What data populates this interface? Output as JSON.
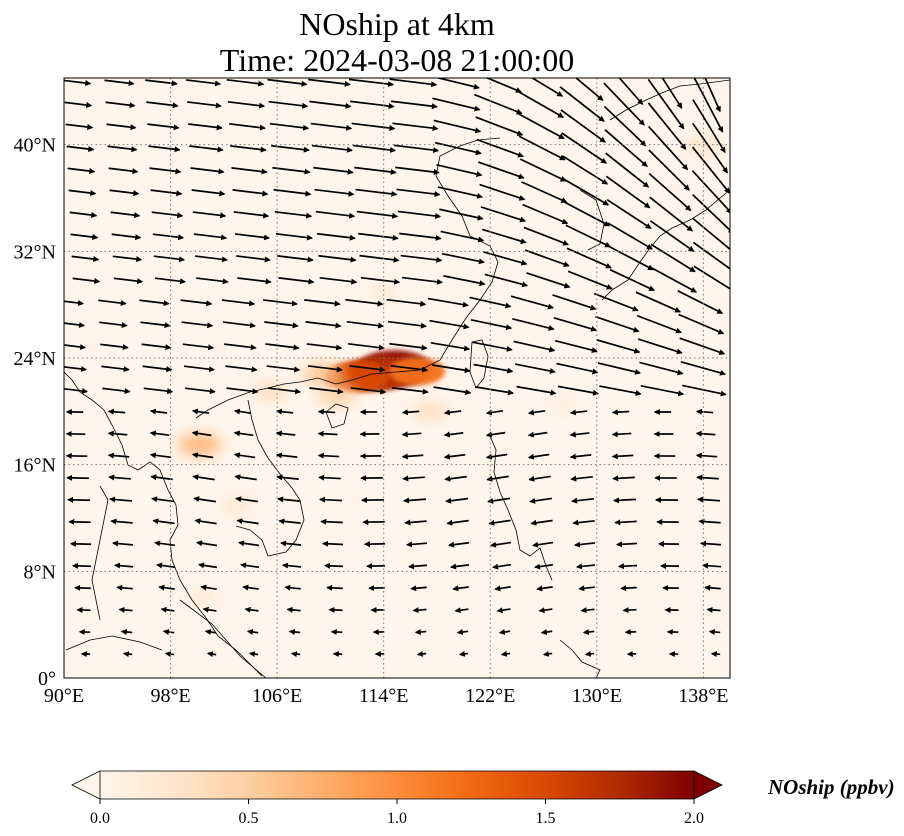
{
  "title": {
    "line1": "NOship at 4km",
    "line2": "Time: 2024-03-08 21:00:00"
  },
  "map": {
    "lon_range": [
      90,
      140
    ],
    "lat_range": [
      0,
      45
    ],
    "lon_ticks": [
      {
        "value": 90,
        "label": "90°E"
      },
      {
        "value": 98,
        "label": "98°E"
      },
      {
        "value": 106,
        "label": "106°E"
      },
      {
        "value": 114,
        "label": "114°E"
      },
      {
        "value": 122,
        "label": "122°E"
      },
      {
        "value": 130,
        "label": "130°E"
      },
      {
        "value": 138,
        "label": "138°E"
      }
    ],
    "lat_ticks": [
      {
        "value": 0,
        "label": "0°"
      },
      {
        "value": 8,
        "label": "8°N"
      },
      {
        "value": 16,
        "label": "16°N"
      },
      {
        "value": 24,
        "label": "24°N"
      },
      {
        "value": 32,
        "label": "32°N"
      },
      {
        "value": 40,
        "label": "40°N"
      }
    ],
    "gridlines": "dotted",
    "field_name": "NOship",
    "hotspots": [
      {
        "lon": 114.8,
        "lat": 23.2,
        "value": 1.9
      },
      {
        "lon": 113.5,
        "lat": 22.8,
        "value": 1.7
      },
      {
        "lon": 112.0,
        "lat": 22.6,
        "value": 1.5
      },
      {
        "lon": 116.5,
        "lat": 23.0,
        "value": 1.2
      },
      {
        "lon": 109.5,
        "lat": 22.8,
        "value": 0.6
      },
      {
        "lon": 110.5,
        "lat": 21.2,
        "value": 0.5
      },
      {
        "lon": 100.2,
        "lat": 17.5,
        "value": 0.7
      },
      {
        "lon": 117.5,
        "lat": 20.0,
        "value": 0.35
      },
      {
        "lon": 114.0,
        "lat": 29.0,
        "value": 0.2
      },
      {
        "lon": 105.5,
        "lat": 21.5,
        "value": 0.35
      },
      {
        "lon": 103.0,
        "lat": 13.0,
        "value": 0.25
      },
      {
        "lon": 100.5,
        "lat": 6.0,
        "value": 0.2
      },
      {
        "lon": 138.0,
        "lat": 40.0,
        "value": 0.3
      },
      {
        "lon": 127.5,
        "lat": 20.5,
        "value": 0.15
      }
    ]
  },
  "colorbar": {
    "min": 0.0,
    "max": 2.0,
    "ticks": [
      {
        "value": 0.0,
        "label": "0.0"
      },
      {
        "value": 0.5,
        "label": "0.5"
      },
      {
        "value": 1.0,
        "label": "1.0"
      },
      {
        "value": 1.5,
        "label": "1.5"
      },
      {
        "value": 2.0,
        "label": "2.0"
      }
    ],
    "label": "NOship (ppbv)",
    "colormap": [
      "#fff5eb",
      "#fee6ce",
      "#fdd0a2",
      "#fdae6b",
      "#fd8d3c",
      "#f16913",
      "#d94801",
      "#b02a00",
      "#7f0000"
    ],
    "extend": "both"
  }
}
